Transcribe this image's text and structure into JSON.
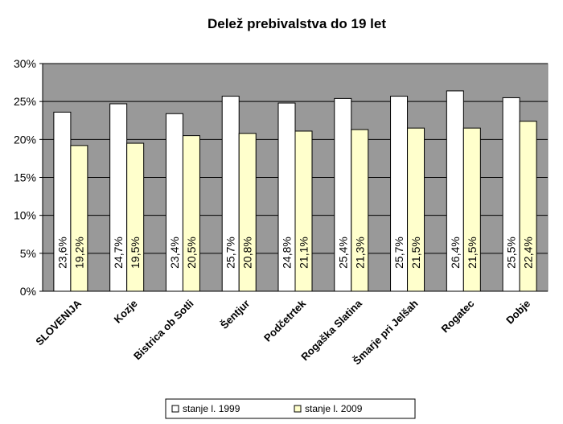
{
  "chart_data": {
    "type": "bar",
    "title": "Delež prebivalstva do 19 let",
    "xlabel": "",
    "ylabel": "",
    "ylim": [
      0,
      30
    ],
    "yticks": [
      "0%",
      "5%",
      "10%",
      "15%",
      "20%",
      "25%",
      "30%"
    ],
    "grid": true,
    "legend_position": "bottom",
    "categories": [
      "SLOVENIJA",
      "Kozje",
      "Bistrica ob Sotli",
      "Šentjur",
      "Podčetrtek",
      "Rogaška Slatina",
      "Šmarje pri Jelšah",
      "Rogatec",
      "Dobje"
    ],
    "series": [
      {
        "name": "stanje l. 1999",
        "color": "#ffffff",
        "values": [
          23.6,
          24.7,
          23.4,
          25.7,
          24.8,
          25.4,
          25.7,
          26.4,
          25.5
        ],
        "labels": [
          "23,6%",
          "24,7%",
          "23,4%",
          "25,7%",
          "24,8%",
          "25,4%",
          "25,7%",
          "26,4%",
          "25,5%"
        ]
      },
      {
        "name": "stanje l. 2009",
        "color": "#ffffcc",
        "values": [
          19.2,
          19.5,
          20.5,
          20.8,
          21.1,
          21.3,
          21.5,
          21.5,
          22.4
        ],
        "labels": [
          "19,2%",
          "19,5%",
          "20,5%",
          "20,8%",
          "21,1%",
          "21,3%",
          "21,5%",
          "21,5%",
          "22,4%"
        ]
      }
    ],
    "colors": {
      "plot_background": "#999999",
      "gridline": "#000000",
      "bar_outline": "#000000"
    }
  }
}
